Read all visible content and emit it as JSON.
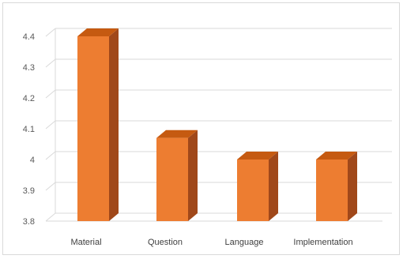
{
  "chart_data": {
    "type": "bar",
    "style": "3d-column",
    "title": "",
    "xlabel": "",
    "ylabel": "",
    "categories": [
      "Material",
      "Question",
      "Language",
      "Implementation"
    ],
    "values": [
      4.4,
      4.07,
      4.0,
      4.0
    ],
    "ylim": [
      3.8,
      4.4
    ],
    "yticks": [
      "3.8",
      "3.9",
      "4",
      "4.1",
      "4.2",
      "4.3",
      "4.4"
    ],
    "grid": true,
    "legend": "none",
    "colors": {
      "bar_front": "#ED7D31",
      "bar_top": "#C55A11",
      "bar_side": "#A0481A",
      "grid": "#d9d9d9",
      "axis_text": "#595959"
    }
  }
}
